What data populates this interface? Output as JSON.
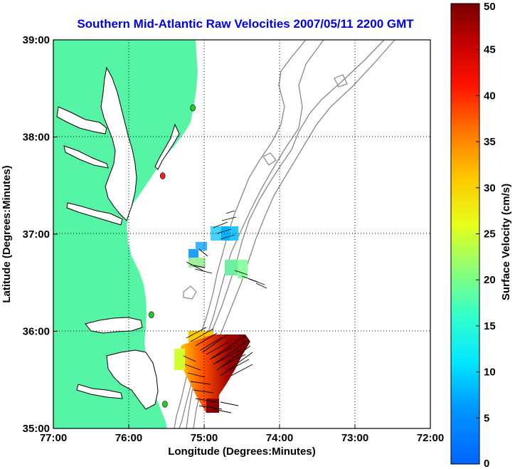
{
  "map": {
    "title": "Southern Mid-Atlantic Raw Velocities 2007/05/11 2200 GMT",
    "xlabel": "Longitude (Degrees:Minutes)",
    "ylabel": "Latitude (Degrees:Minutes)",
    "x_ticks": [
      "77:00",
      "76:00",
      "75:00",
      "74:00",
      "73:00",
      "72:00"
    ],
    "y_ticks": [
      "39:00",
      "38:00",
      "37:00",
      "36:00",
      "35:00"
    ],
    "x_range_deg": [
      -77,
      -72
    ],
    "y_range_deg": [
      35,
      39
    ],
    "grid": "dotted",
    "land_color": "#55f5a5",
    "ocean_color": "#ffffff",
    "contour_color": "#888888"
  },
  "colorbar": {
    "label": "Surface Velocity (cm/s)",
    "ticks": [
      "0",
      "5",
      "10",
      "15",
      "20",
      "25",
      "30",
      "35",
      "40",
      "45",
      "50"
    ],
    "range": [
      0,
      50
    ],
    "colormap": "jet"
  },
  "stations": [
    {
      "lon": -75.15,
      "lat": 38.3,
      "color": "#22cc22"
    },
    {
      "lon": -75.55,
      "lat": 37.6,
      "color": "#ee2222"
    },
    {
      "lon": -75.7,
      "lat": 36.17,
      "color": "#22cc22"
    },
    {
      "lon": -75.52,
      "lat": 35.25,
      "color": "#22cc22"
    }
  ]
}
